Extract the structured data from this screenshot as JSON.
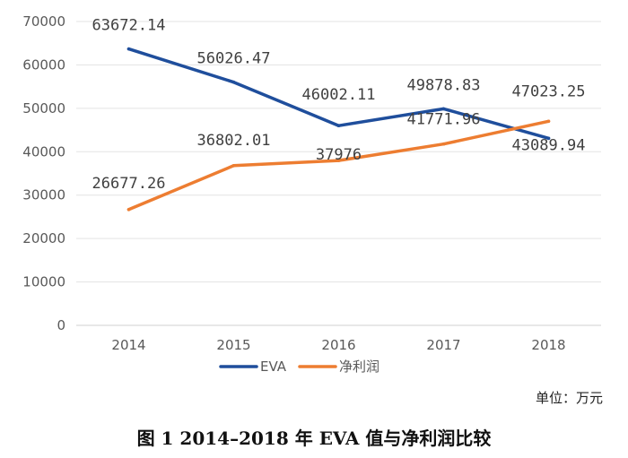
{
  "chart_data": {
    "type": "line",
    "categories": [
      "2014",
      "2015",
      "2016",
      "2017",
      "2018"
    ],
    "ylim": [
      0,
      70000
    ],
    "yticks": [
      0,
      10000,
      20000,
      30000,
      40000,
      50000,
      60000,
      70000
    ],
    "grid": true,
    "legend_position": "bottom",
    "series": [
      {
        "name": "EVA",
        "color": "#1f4e9c",
        "values": [
          63672.14,
          56026.47,
          46002.11,
          49878.83,
          43089.94
        ],
        "labels": [
          "63672.14",
          "56026.47",
          "46002.11",
          "49878.83",
          "43089.94"
        ]
      },
      {
        "name": "净利润",
        "color": "#ed7d31",
        "values": [
          26677.26,
          36802.01,
          37976,
          41771.96,
          47023.25
        ],
        "labels": [
          "26677.26",
          "36802.01",
          "37976",
          "41771.96",
          "47023.25"
        ]
      }
    ]
  },
  "unit_label": "单位：万元",
  "caption": "图 1  2014–2018 年 EVA 值与净利润比较"
}
